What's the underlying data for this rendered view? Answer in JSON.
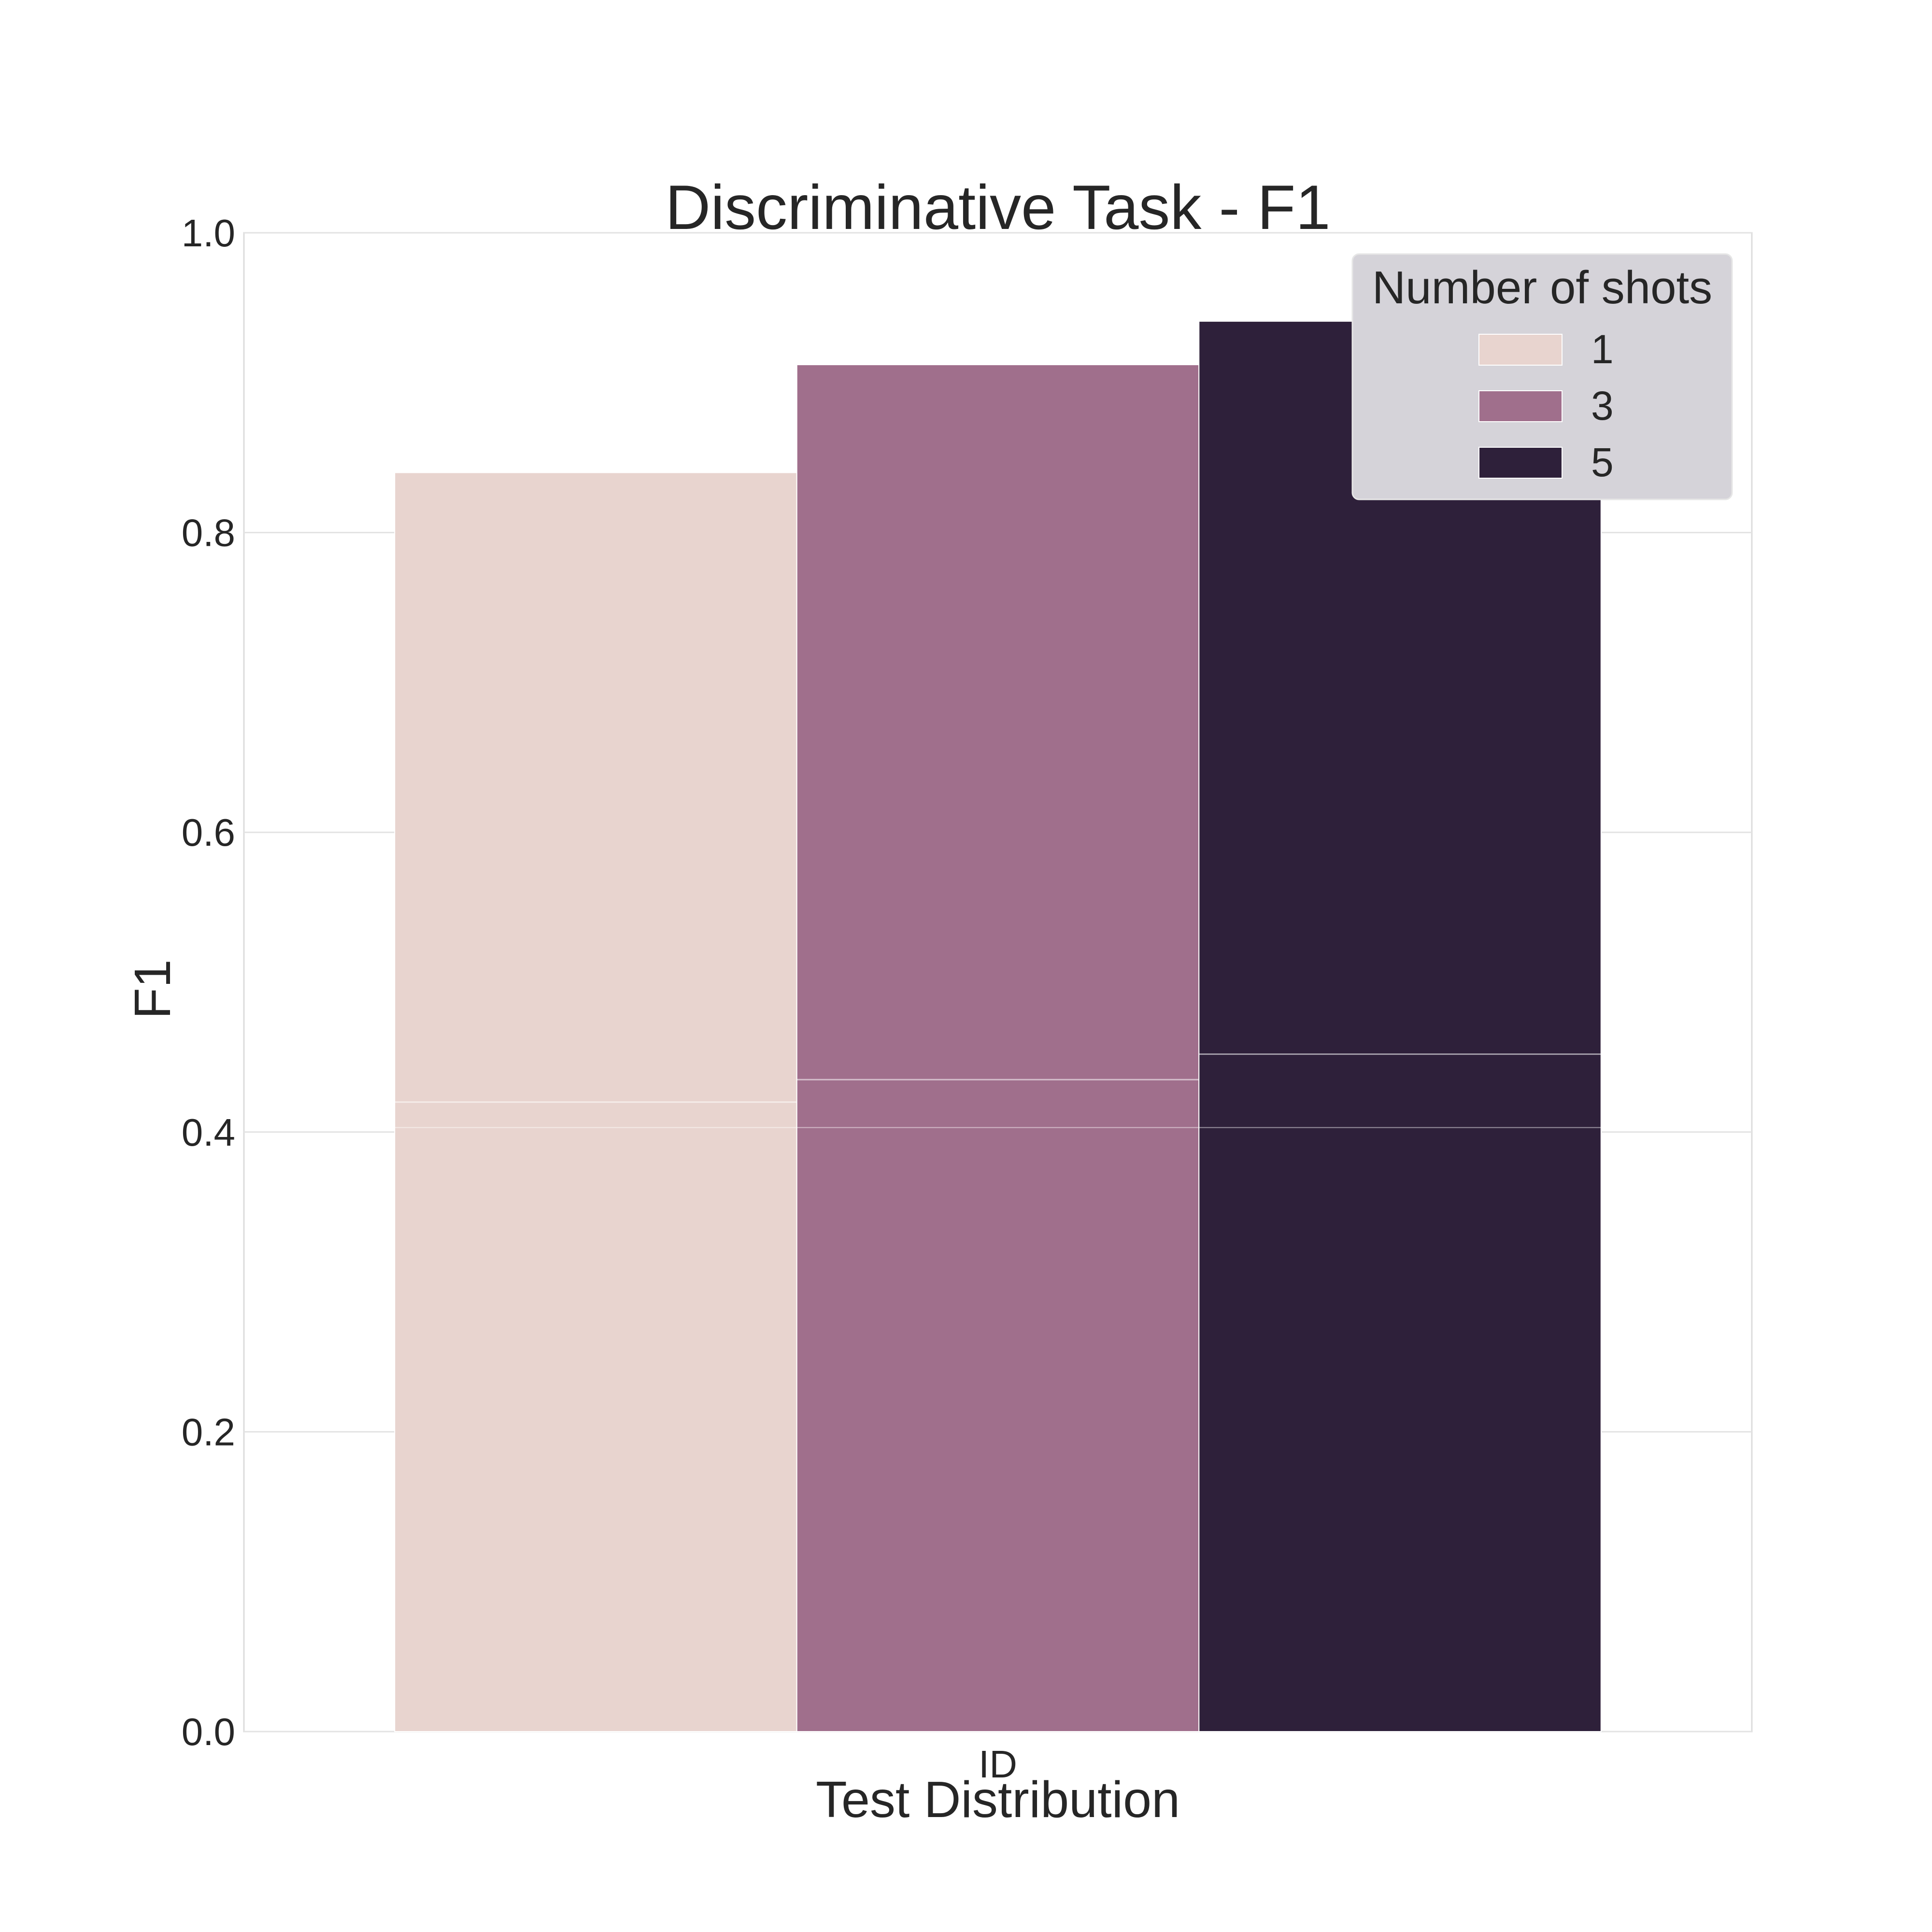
{
  "chart_data": {
    "type": "bar",
    "title": "Discriminative Task - F1",
    "xlabel": "Test Distribution",
    "ylabel": "F1",
    "categories": [
      "ID"
    ],
    "ylim": [
      0,
      1.0
    ],
    "yticks": [
      "0.0",
      "0.2",
      "0.4",
      "0.6",
      "0.8",
      "1.0"
    ],
    "grid": true,
    "legend": {
      "title": "Number of shots",
      "placement": "top-right"
    },
    "series": [
      {
        "name": "1",
        "values": [
          0.84
        ],
        "error_low": [
          0.42
        ],
        "color": "#e8d4cf"
      },
      {
        "name": "3",
        "values": [
          0.912
        ],
        "error_low": [
          0.435
        ],
        "color": "#a06f8c"
      },
      {
        "name": "5",
        "values": [
          0.941
        ],
        "error_low": [
          0.452
        ],
        "color": "#2e203a"
      }
    ]
  }
}
